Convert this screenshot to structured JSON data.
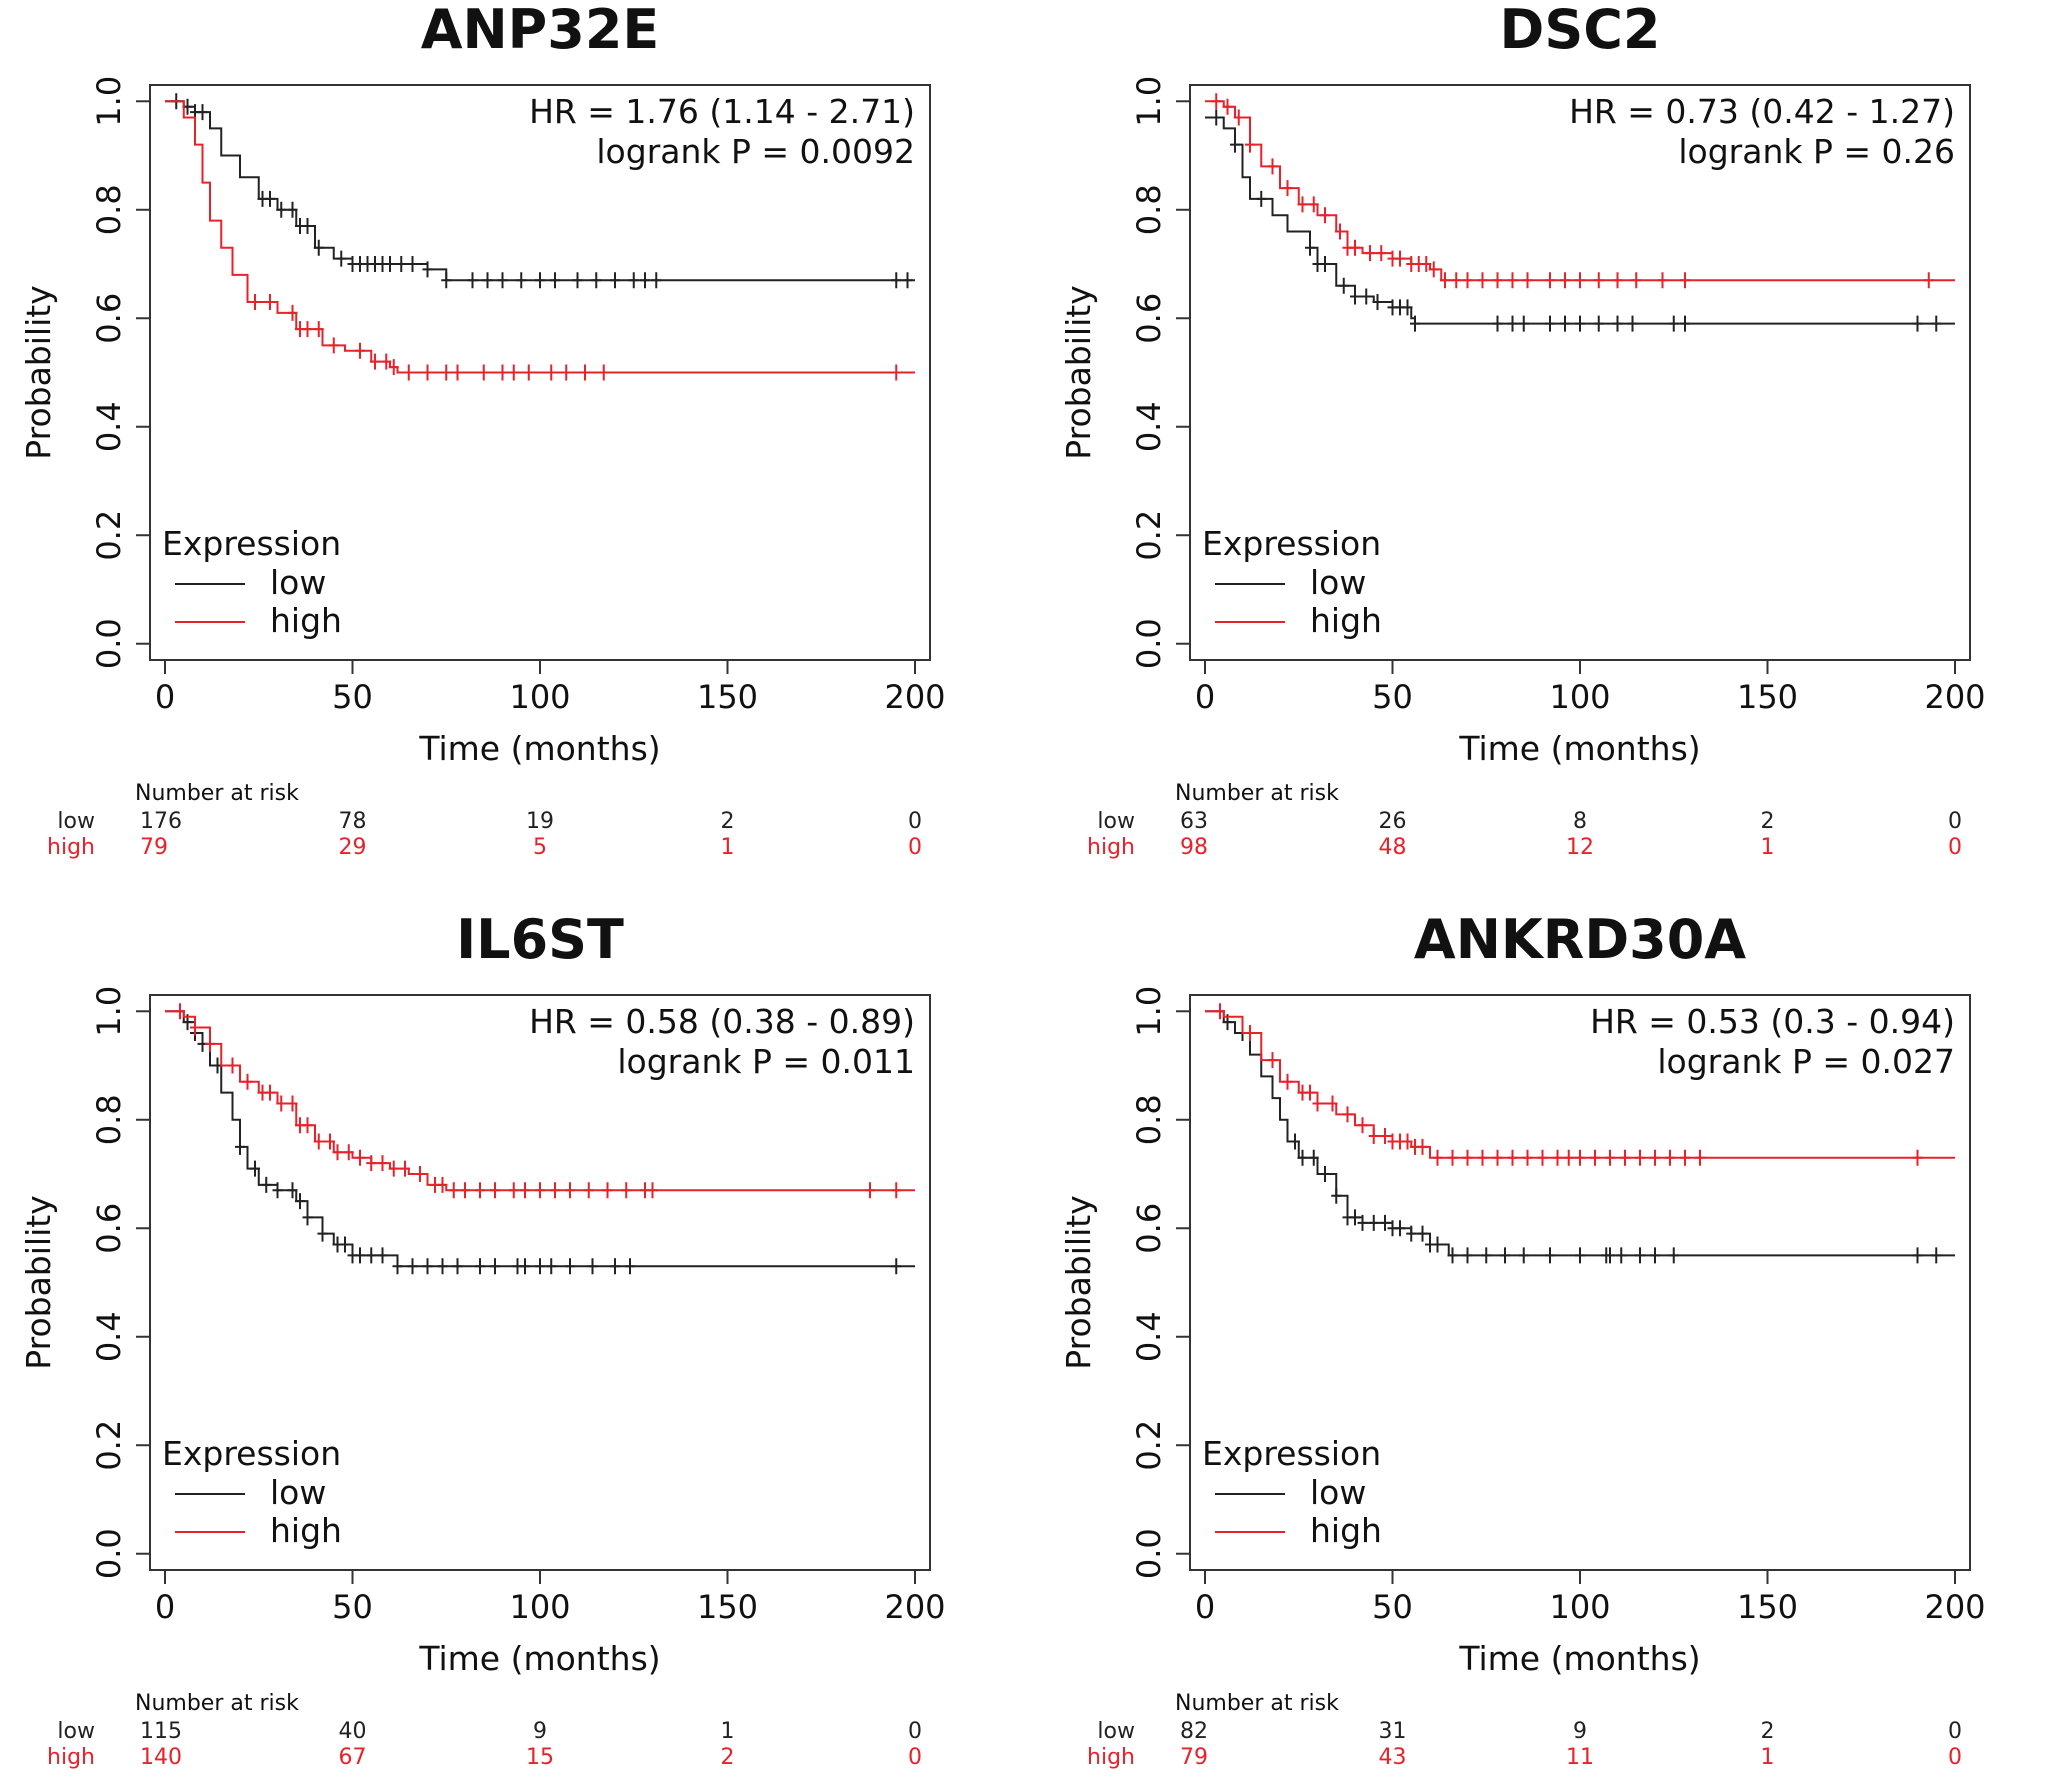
{
  "colors": {
    "low": "#222222",
    "high": "#e8222a",
    "axis": "#333333"
  },
  "chart_data": [
    {
      "type": "line",
      "title": "ANP32E",
      "xlabel": "Time (months)",
      "ylabel": "Probability",
      "xlim": [
        0,
        200
      ],
      "ylim": [
        0,
        1
      ],
      "xticks": [
        "0",
        "50",
        "100",
        "150",
        "200"
      ],
      "yticks": [
        "0.0",
        "0.2",
        "0.4",
        "0.6",
        "0.8",
        "1.0"
      ],
      "hr_text": "HR = 1.76 (1.14 - 2.71)",
      "p_text": "logrank P = 0.0092",
      "legend_title": "Expression",
      "risk_title": "Number at risk",
      "series": [
        {
          "name": "low",
          "color": "#222222",
          "points": [
            [
              0,
              1.0
            ],
            [
              5,
              0.99
            ],
            [
              8,
              0.98
            ],
            [
              12,
              0.95
            ],
            [
              15,
              0.9
            ],
            [
              20,
              0.86
            ],
            [
              25,
              0.82
            ],
            [
              30,
              0.8
            ],
            [
              35,
              0.77
            ],
            [
              40,
              0.73
            ],
            [
              45,
              0.71
            ],
            [
              50,
              0.7
            ],
            [
              60,
              0.7
            ],
            [
              70,
              0.69
            ],
            [
              75,
              0.67
            ],
            [
              200,
              0.67
            ]
          ],
          "censor": [
            3,
            6,
            8,
            10,
            26,
            28,
            31,
            34,
            36,
            38,
            41,
            47,
            50,
            52,
            54,
            56,
            58,
            60,
            63,
            66,
            70,
            75,
            82,
            86,
            90,
            95,
            100,
            104,
            110,
            115,
            120,
            125,
            128,
            131,
            195,
            198
          ],
          "at_risk": [
            "176",
            "78",
            "19",
            "2",
            "0"
          ]
        },
        {
          "name": "high",
          "color": "#e8222a",
          "points": [
            [
              0,
              1.0
            ],
            [
              5,
              0.97
            ],
            [
              8,
              0.92
            ],
            [
              10,
              0.85
            ],
            [
              12,
              0.78
            ],
            [
              15,
              0.73
            ],
            [
              18,
              0.68
            ],
            [
              22,
              0.63
            ],
            [
              30,
              0.61
            ],
            [
              35,
              0.58
            ],
            [
              42,
              0.55
            ],
            [
              48,
              0.54
            ],
            [
              55,
              0.52
            ],
            [
              60,
              0.51
            ],
            [
              62,
              0.5
            ],
            [
              200,
              0.5
            ]
          ],
          "censor": [
            24,
            28,
            34,
            36,
            38,
            41,
            45,
            52,
            56,
            59,
            61,
            65,
            70,
            75,
            78,
            85,
            90,
            93,
            97,
            103,
            107,
            112,
            117,
            195
          ],
          "at_risk": [
            "79",
            "29",
            "5",
            "1",
            "0"
          ]
        }
      ]
    },
    {
      "type": "line",
      "title": "DSC2",
      "xlabel": "Time (months)",
      "ylabel": "Probability",
      "xlim": [
        0,
        200
      ],
      "ylim": [
        0,
        1
      ],
      "xticks": [
        "0",
        "50",
        "100",
        "150",
        "200"
      ],
      "yticks": [
        "0.0",
        "0.2",
        "0.4",
        "0.6",
        "0.8",
        "1.0"
      ],
      "hr_text": "HR = 0.73 (0.42 - 1.27)",
      "p_text": "logrank P = 0.26",
      "legend_title": "Expression",
      "risk_title": "Number at risk",
      "series": [
        {
          "name": "low",
          "color": "#222222",
          "points": [
            [
              0,
              0.97
            ],
            [
              5,
              0.95
            ],
            [
              8,
              0.92
            ],
            [
              10,
              0.86
            ],
            [
              12,
              0.82
            ],
            [
              18,
              0.79
            ],
            [
              22,
              0.76
            ],
            [
              28,
              0.73
            ],
            [
              30,
              0.7
            ],
            [
              35,
              0.66
            ],
            [
              40,
              0.64
            ],
            [
              45,
              0.63
            ],
            [
              50,
              0.62
            ],
            [
              55,
              0.6
            ],
            [
              56,
              0.59
            ],
            [
              200,
              0.59
            ]
          ],
          "censor": [
            3,
            8,
            15,
            28,
            30,
            32,
            37,
            40,
            43,
            46,
            50,
            52,
            54,
            56,
            78,
            82,
            85,
            92,
            96,
            100,
            105,
            110,
            114,
            125,
            128,
            190,
            195
          ],
          "at_risk": [
            "63",
            "26",
            "8",
            "2",
            "0"
          ]
        },
        {
          "name": "high",
          "color": "#e8222a",
          "points": [
            [
              0,
              1.0
            ],
            [
              5,
              0.99
            ],
            [
              8,
              0.97
            ],
            [
              12,
              0.92
            ],
            [
              15,
              0.88
            ],
            [
              20,
              0.84
            ],
            [
              25,
              0.81
            ],
            [
              30,
              0.79
            ],
            [
              35,
              0.76
            ],
            [
              38,
              0.73
            ],
            [
              42,
              0.72
            ],
            [
              50,
              0.71
            ],
            [
              55,
              0.7
            ],
            [
              60,
              0.69
            ],
            [
              63,
              0.67
            ],
            [
              200,
              0.67
            ]
          ],
          "censor": [
            3,
            6,
            9,
            12,
            18,
            22,
            26,
            29,
            32,
            36,
            38,
            40,
            44,
            47,
            50,
            52,
            55,
            57,
            59,
            61,
            64,
            67,
            70,
            74,
            78,
            82,
            86,
            92,
            96,
            100,
            105,
            110,
            115,
            122,
            128,
            193
          ],
          "at_risk": [
            "98",
            "48",
            "12",
            "1",
            "0"
          ]
        }
      ]
    },
    {
      "type": "line",
      "title": "IL6ST",
      "xlabel": "Time (months)",
      "ylabel": "Probability",
      "xlim": [
        0,
        200
      ],
      "ylim": [
        0,
        1
      ],
      "xticks": [
        "0",
        "50",
        "100",
        "150",
        "200"
      ],
      "yticks": [
        "0.0",
        "0.2",
        "0.4",
        "0.6",
        "0.8",
        "1.0"
      ],
      "hr_text": "HR = 0.58 (0.38 - 0.89)",
      "p_text": "logrank P = 0.011",
      "legend_title": "Expression",
      "risk_title": "Number at risk",
      "series": [
        {
          "name": "low",
          "color": "#222222",
          "points": [
            [
              0,
              1.0
            ],
            [
              5,
              0.98
            ],
            [
              8,
              0.96
            ],
            [
              10,
              0.94
            ],
            [
              12,
              0.9
            ],
            [
              15,
              0.85
            ],
            [
              18,
              0.8
            ],
            [
              20,
              0.75
            ],
            [
              22,
              0.71
            ],
            [
              25,
              0.68
            ],
            [
              30,
              0.67
            ],
            [
              35,
              0.65
            ],
            [
              38,
              0.62
            ],
            [
              42,
              0.59
            ],
            [
              45,
              0.57
            ],
            [
              50,
              0.55
            ],
            [
              60,
              0.55
            ],
            [
              62,
              0.53
            ],
            [
              200,
              0.53
            ]
          ],
          "censor": [
            6,
            8,
            10,
            14,
            20,
            24,
            27,
            30,
            34,
            36,
            38,
            42,
            46,
            48,
            50,
            52,
            55,
            58,
            62,
            66,
            70,
            74,
            78,
            84,
            88,
            94,
            96,
            100,
            103,
            108,
            114,
            120,
            124,
            195
          ],
          "at_risk": [
            "115",
            "40",
            "9",
            "1",
            "0"
          ]
        },
        {
          "name": "high",
          "color": "#e8222a",
          "points": [
            [
              0,
              1.0
            ],
            [
              5,
              0.99
            ],
            [
              8,
              0.97
            ],
            [
              12,
              0.94
            ],
            [
              15,
              0.9
            ],
            [
              20,
              0.87
            ],
            [
              25,
              0.85
            ],
            [
              30,
              0.83
            ],
            [
              35,
              0.79
            ],
            [
              40,
              0.76
            ],
            [
              45,
              0.74
            ],
            [
              50,
              0.73
            ],
            [
              55,
              0.72
            ],
            [
              60,
              0.71
            ],
            [
              65,
              0.7
            ],
            [
              70,
              0.68
            ],
            [
              75,
              0.67
            ],
            [
              200,
              0.67
            ]
          ],
          "censor": [
            4,
            8,
            12,
            18,
            22,
            26,
            28,
            31,
            34,
            36,
            38,
            41,
            44,
            46,
            49,
            52,
            55,
            58,
            61,
            64,
            68,
            72,
            74,
            77,
            80,
            84,
            88,
            93,
            96,
            100,
            104,
            108,
            113,
            118,
            123,
            128,
            130,
            188,
            195
          ],
          "at_risk": [
            "140",
            "67",
            "15",
            "2",
            "0"
          ]
        }
      ]
    },
    {
      "type": "line",
      "title": "ANKRD30A",
      "xlabel": "Time (months)",
      "ylabel": "Probability",
      "xlim": [
        0,
        200
      ],
      "ylim": [
        0,
        1
      ],
      "xticks": [
        "0",
        "50",
        "100",
        "150",
        "200"
      ],
      "yticks": [
        "0.0",
        "0.2",
        "0.4",
        "0.6",
        "0.8",
        "1.0"
      ],
      "hr_text": "HR = 0.53 (0.3 - 0.94)",
      "p_text": "logrank P = 0.027",
      "legend_title": "Expression",
      "risk_title": "Number at risk",
      "series": [
        {
          "name": "low",
          "color": "#222222",
          "points": [
            [
              0,
              1.0
            ],
            [
              5,
              0.98
            ],
            [
              8,
              0.96
            ],
            [
              12,
              0.92
            ],
            [
              15,
              0.88
            ],
            [
              18,
              0.84
            ],
            [
              20,
              0.8
            ],
            [
              22,
              0.76
            ],
            [
              25,
              0.73
            ],
            [
              30,
              0.7
            ],
            [
              35,
              0.66
            ],
            [
              38,
              0.62
            ],
            [
              42,
              0.61
            ],
            [
              50,
              0.6
            ],
            [
              55,
              0.59
            ],
            [
              60,
              0.57
            ],
            [
              65,
              0.55
            ],
            [
              200,
              0.55
            ]
          ],
          "censor": [
            6,
            10,
            24,
            26,
            29,
            32,
            35,
            38,
            40,
            42,
            45,
            48,
            50,
            52,
            55,
            58,
            60,
            62,
            66,
            70,
            75,
            80,
            85,
            92,
            100,
            107,
            108,
            111,
            116,
            120,
            125,
            190,
            195
          ],
          "at_risk": [
            "82",
            "31",
            "9",
            "2",
            "0"
          ]
        },
        {
          "name": "high",
          "color": "#e8222a",
          "points": [
            [
              0,
              1.0
            ],
            [
              5,
              0.99
            ],
            [
              10,
              0.96
            ],
            [
              15,
              0.91
            ],
            [
              20,
              0.87
            ],
            [
              25,
              0.85
            ],
            [
              30,
              0.83
            ],
            [
              35,
              0.81
            ],
            [
              40,
              0.79
            ],
            [
              45,
              0.77
            ],
            [
              50,
              0.76
            ],
            [
              55,
              0.75
            ],
            [
              60,
              0.73
            ],
            [
              200,
              0.73
            ]
          ],
          "censor": [
            4,
            12,
            18,
            22,
            26,
            28,
            30,
            34,
            38,
            42,
            45,
            48,
            50,
            52,
            54,
            56,
            58,
            62,
            66,
            70,
            74,
            78,
            82,
            86,
            90,
            94,
            97,
            100,
            104,
            108,
            112,
            116,
            120,
            124,
            128,
            132,
            190
          ],
          "at_risk": [
            "79",
            "43",
            "11",
            "1",
            "0"
          ]
        }
      ]
    }
  ]
}
